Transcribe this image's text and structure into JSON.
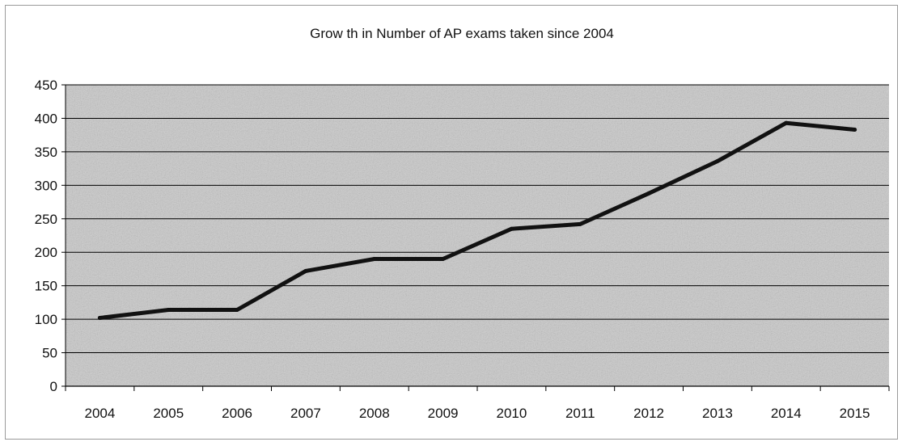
{
  "chart_data": {
    "type": "line",
    "title": "Grow th in Number of AP exams taken since 2004",
    "xlabel": "",
    "ylabel": "",
    "categories": [
      "2004",
      "2005",
      "2006",
      "2007",
      "2008",
      "2009",
      "2010",
      "2011",
      "2012",
      "2013",
      "2014",
      "2015"
    ],
    "series": [
      {
        "values": [
          102,
          114,
          114,
          172,
          190,
          190,
          235,
          242,
          288,
          336,
          393,
          383
        ]
      }
    ],
    "ylim": [
      0,
      450
    ],
    "yticks": [
      0,
      50,
      100,
      150,
      200,
      250,
      300,
      350,
      400,
      450
    ],
    "grid": true,
    "legend": "none",
    "colors": {
      "plot_background": "#c9c9c9",
      "gridline": "#000000",
      "line": "#111111"
    }
  }
}
